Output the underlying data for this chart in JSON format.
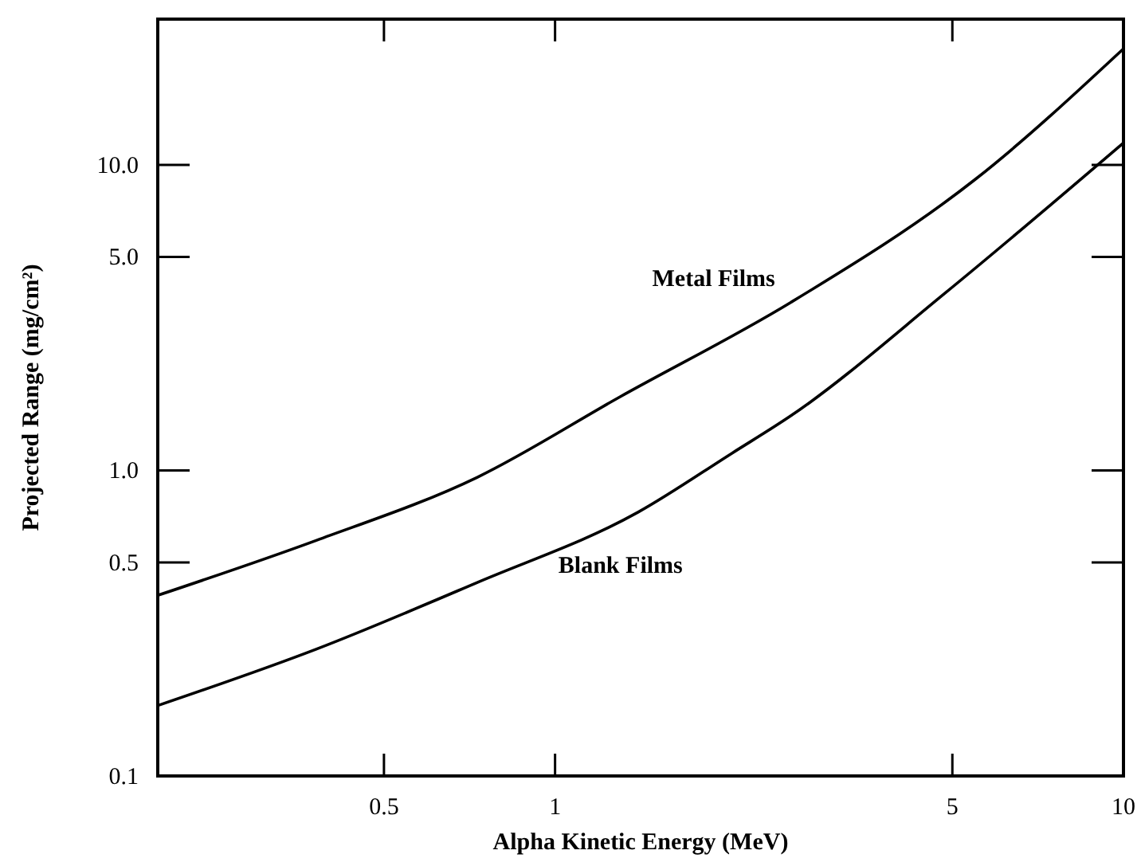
{
  "chart_data": {
    "type": "line",
    "xlabel": "Alpha Kinetic Energy (MeV)",
    "ylabel": "Projected Range (mg/cm²)",
    "log": "xy",
    "grid": false,
    "legend": false,
    "marker": "none",
    "line_style": "solid",
    "xlim": [
      0.2,
      10
    ],
    "xticks": [
      0.5,
      1,
      5,
      10
    ],
    "ylim": [
      0.1,
      30
    ],
    "yticks": [
      {
        "value": 0.1,
        "label": "0.1"
      },
      {
        "value": 0.5,
        "label": "0.5"
      },
      {
        "value": 1,
        "label": "1.0"
      },
      {
        "value": 5,
        "label": "5.0"
      },
      {
        "value": 10,
        "label": "10.0"
      }
    ],
    "series": [
      {
        "name": "Metal Films",
        "color": "#000000",
        "x": [
          0.2,
          0.38,
          0.73,
          1.3,
          2.6,
          5.5,
          10
        ],
        "values": [
          0.39,
          0.59,
          0.95,
          1.74,
          3.55,
          9,
          24
        ]
      },
      {
        "name": "Blank Films",
        "color": "#000000",
        "x": [
          0.2,
          0.38,
          0.73,
          1.4,
          2.05,
          2.6,
          4.85,
          10
        ],
        "values": [
          0.17,
          0.26,
          0.43,
          0.73,
          1.14,
          1.51,
          3.8,
          11.8
        ]
      }
    ]
  }
}
